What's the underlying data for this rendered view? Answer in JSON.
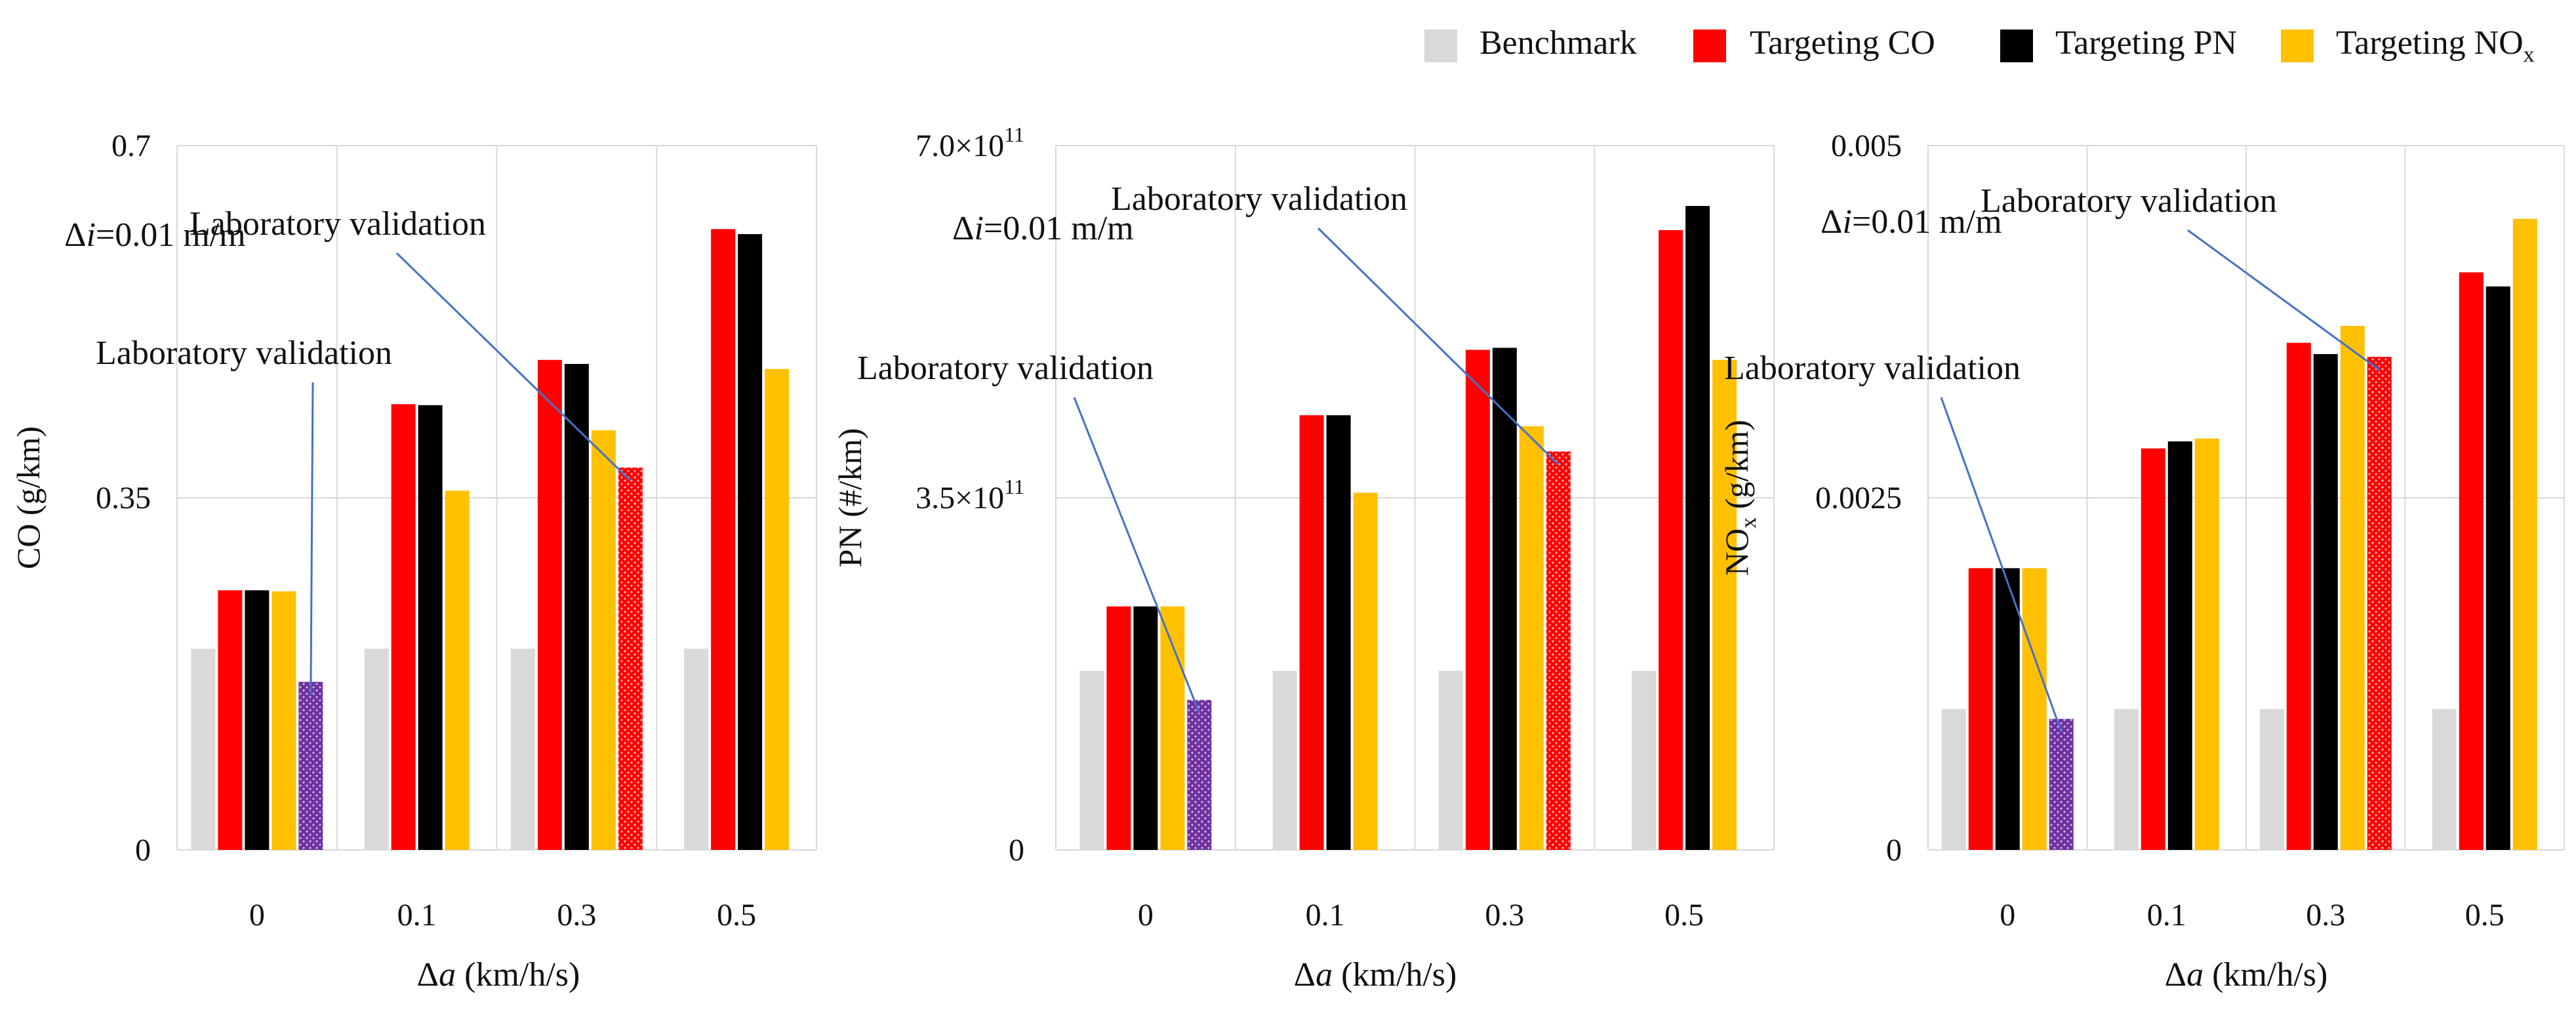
{
  "legend": {
    "items": [
      {
        "label": "Benchmark",
        "color": "#d9d9d9",
        "sub": ""
      },
      {
        "label": "Targeting CO",
        "color": "#ff0000",
        "sub": ""
      },
      {
        "label": "Targeting PN",
        "color": "#000000",
        "sub": ""
      },
      {
        "label": "Targeting NO",
        "color": "#ffc000",
        "sub": "x"
      }
    ]
  },
  "colors": {
    "benchmark": "#d9d9d9",
    "target_co": "#ff0000",
    "target_pn": "#000000",
    "target_nox": "#ffc000",
    "lab_purple": "#7030a0",
    "lab_red": "#ff0000",
    "leader_line": "#4472c4",
    "grid": "#d9d9d9"
  },
  "chart_data": [
    {
      "type": "bar",
      "panel": "co",
      "annotation_di_prefix": "Δ",
      "annotation_di_var": "i",
      "annotation_di_suffix": "=0.01 m/m",
      "ylabel": "CO (g/km)",
      "ylabel_main": "CO",
      "ylabel_sub": "",
      "ylabel_unit": " (g/km)",
      "xlabel_prefix": "Δ",
      "xlabel_var": "a",
      "xlabel_suffix": " (km/h/s)",
      "categories": [
        "0",
        "0.1",
        "0.3",
        "0.5"
      ],
      "ylim": [
        0,
        0.7
      ],
      "yticks": [
        "0",
        "0.35",
        "0.7"
      ],
      "series": [
        {
          "name": "Benchmark",
          "values": [
            0.2,
            0.2,
            0.2,
            0.2
          ]
        },
        {
          "name": "Targeting CO",
          "values": [
            0.258,
            0.443,
            0.487,
            0.617
          ]
        },
        {
          "name": "Targeting PN",
          "values": [
            0.258,
            0.442,
            0.483,
            0.612
          ]
        },
        {
          "name": "Targeting NOx",
          "values": [
            0.257,
            0.357,
            0.417,
            0.478
          ]
        }
      ],
      "lab_validation": [
        {
          "category_index": 0,
          "value": 0.167,
          "pattern": "purple",
          "label": "Laboratory validation"
        },
        {
          "category_index": 2,
          "value": 0.38,
          "pattern": "red",
          "label": "Laboratory validation"
        }
      ]
    },
    {
      "type": "bar",
      "panel": "pn",
      "annotation_di_prefix": "Δ",
      "annotation_di_var": "i",
      "annotation_di_suffix": "=0.01 m/m",
      "ylabel": "PN (#/km)",
      "ylabel_main": "PN",
      "ylabel_sub": "",
      "ylabel_unit": " (#/km)",
      "xlabel_prefix": "Δ",
      "xlabel_var": "a",
      "xlabel_suffix": " (km/h/s)",
      "categories": [
        "0",
        "0.1",
        "0.3",
        "0.5"
      ],
      "ylim": [
        0,
        700000000000
      ],
      "ytick_labels": [
        {
          "mantissa": "0",
          "exp": ""
        },
        {
          "mantissa": "3.5×10",
          "exp": "11"
        },
        {
          "mantissa": "7.0×10",
          "exp": "11"
        }
      ],
      "series": [
        {
          "name": "Benchmark",
          "values": [
            178000000000,
            178000000000,
            178000000000,
            178000000000
          ]
        },
        {
          "name": "Targeting CO",
          "values": [
            242000000000,
            432000000000,
            497000000000,
            616000000000
          ]
        },
        {
          "name": "Targeting PN",
          "values": [
            242000000000,
            432000000000,
            499000000000,
            640000000000
          ]
        },
        {
          "name": "Targeting NOx",
          "values": [
            242000000000,
            355000000000,
            421000000000,
            487000000000
          ]
        }
      ],
      "lab_validation": [
        {
          "category_index": 0,
          "value": 149000000000,
          "pattern": "purple",
          "label": "Laboratory validation"
        },
        {
          "category_index": 2,
          "value": 396000000000,
          "pattern": "red",
          "label": "Laboratory validation"
        }
      ]
    },
    {
      "type": "bar",
      "panel": "nox",
      "annotation_di_prefix": "Δ",
      "annotation_di_var": "i",
      "annotation_di_suffix": "=0.01 m/m",
      "ylabel": "NOx (g/km)",
      "ylabel_main": "NO",
      "ylabel_sub": "x",
      "ylabel_unit": " (g/km)",
      "xlabel_prefix": "Δ",
      "xlabel_var": "a",
      "xlabel_suffix": " (km/h/s)",
      "categories": [
        "0",
        "0.1",
        "0.3",
        "0.5"
      ],
      "ylim": [
        0,
        0.005
      ],
      "yticks": [
        "0",
        "0.0025",
        "0.005"
      ],
      "series": [
        {
          "name": "Benchmark",
          "values": [
            0.001,
            0.001,
            0.001,
            0.001
          ]
        },
        {
          "name": "Targeting CO",
          "values": [
            0.002,
            0.00285,
            0.0036,
            0.0041
          ]
        },
        {
          "name": "Targeting PN",
          "values": [
            0.002,
            0.0029,
            0.00352,
            0.004
          ]
        },
        {
          "name": "Targeting NOx",
          "values": [
            0.002,
            0.00292,
            0.00372,
            0.00448
          ]
        }
      ],
      "lab_validation": [
        {
          "category_index": 0,
          "value": 0.00093,
          "pattern": "purple",
          "label": "Laboratory validation"
        },
        {
          "category_index": 2,
          "value": 0.0035,
          "pattern": "red",
          "label": "Laboratory validation"
        }
      ]
    }
  ]
}
